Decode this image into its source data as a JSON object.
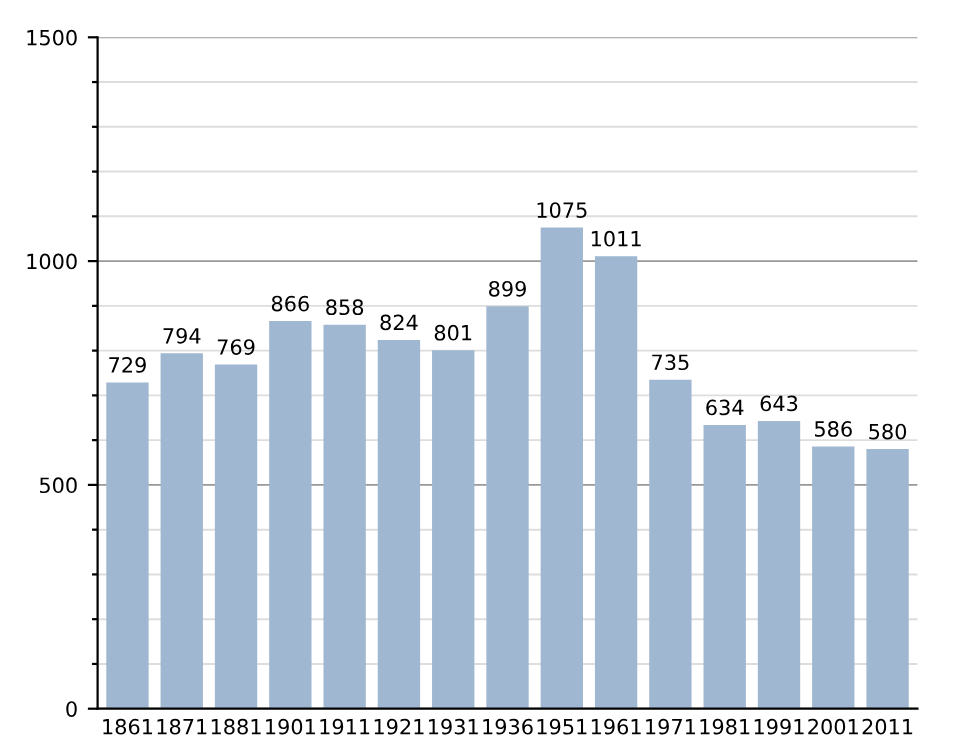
{
  "chart_data": {
    "type": "bar",
    "categories": [
      "1861",
      "1871",
      "1881",
      "1901",
      "1911",
      "1921",
      "1931",
      "1936",
      "1951",
      "1961",
      "1971",
      "1981",
      "1991",
      "2001",
      "2011"
    ],
    "values": [
      729,
      794,
      769,
      866,
      858,
      824,
      801,
      899,
      1075,
      1011,
      735,
      634,
      643,
      586,
      580
    ],
    "color": "#9fb7d1",
    "ylim": [
      0,
      1500
    ],
    "yticks": [
      0,
      {
        "value": 100,
        "label": null
      },
      {
        "value": 200,
        "label": null
      },
      {
        "value": 300,
        "label": null
      },
      {
        "value": 400,
        "label": null
      },
      500,
      {
        "value": 600,
        "label": null
      },
      {
        "value": 700,
        "label": null
      },
      {
        "value": 800,
        "label": null
      },
      {
        "value": 900,
        "label": null
      },
      1000,
      {
        "value": 1100,
        "label": null
      },
      {
        "value": 1200,
        "label": null
      },
      {
        "value": 1300,
        "label": null
      },
      {
        "value": 1400,
        "label": null
      },
      1500
    ],
    "grid": "y",
    "data_labels": true
  }
}
